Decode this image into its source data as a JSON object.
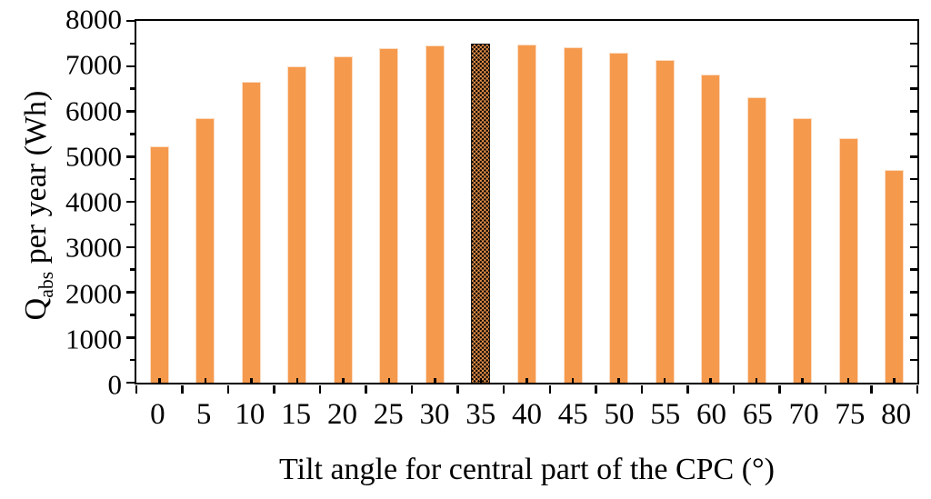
{
  "chart_data": {
    "type": "bar",
    "title": "",
    "xlabel": "Tilt angle for central part of the CPC (°)",
    "ylabel": "Qabs per year (Wh)",
    "ylabel_parts": {
      "main": "Q",
      "sub": "abs",
      "rest": " per year (Wh)"
    },
    "categories": [
      "0",
      "5",
      "10",
      "15",
      "20",
      "25",
      "30",
      "35",
      "40",
      "45",
      "50",
      "55",
      "60",
      "65",
      "70",
      "75",
      "80"
    ],
    "values": [
      5230,
      5850,
      6650,
      7000,
      7210,
      7390,
      7455,
      7500,
      7480,
      7425,
      7305,
      7130,
      6820,
      6320,
      5840,
      5415,
      4710
    ],
    "highlight_index": 7,
    "highlight_category": "35",
    "highlight_style": "black-dot-pattern",
    "ylim": [
      0,
      8000
    ],
    "y_major_step": 1000,
    "y_minor_step": 500,
    "y_tick_labels": [
      "0",
      "1000",
      "2000",
      "3000",
      "4000",
      "5000",
      "6000",
      "7000",
      "8000"
    ],
    "grid": false,
    "legend": false,
    "plot_border": "box",
    "colors": {
      "bar": "#F5994D",
      "bar_edge": "#FBDCC2",
      "pattern_dots": "#000000",
      "axis": "#000000",
      "background": "#FFFFFF"
    }
  }
}
